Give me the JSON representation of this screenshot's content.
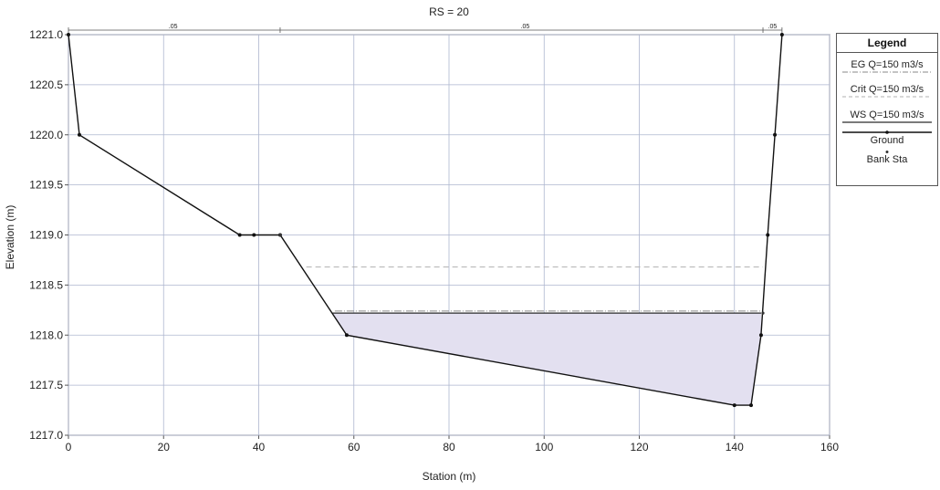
{
  "chart_data": {
    "type": "line",
    "title": "RS = 20",
    "xlabel": "Station (m)",
    "ylabel": "Elevation (m)",
    "xlim": [
      0,
      160
    ],
    "ylim": [
      1217.0,
      1221.0
    ],
    "xticks": [
      "0",
      "20",
      "40",
      "60",
      "80",
      "100",
      "120",
      "140",
      "160"
    ],
    "yticks": [
      "1217.0",
      "1217.5",
      "1218.0",
      "1218.5",
      "1219.0",
      "1219.5",
      "1220.0",
      "1220.5",
      "1221.0"
    ],
    "grid": true,
    "legend_position": "right",
    "legend_title": "Legend",
    "manning_labels": [
      {
        "station": 22,
        "text": ".05"
      },
      {
        "station": 96,
        "text": ".05"
      },
      {
        "station": 148,
        "text": ".05"
      }
    ],
    "manning_breaks": [
      0,
      44.5,
      146,
      150
    ],
    "series": [
      {
        "name": "EG Q=150 m3/s",
        "style": "dash-dot",
        "color": "#8a8a8a",
        "x": [
          56,
          146
        ],
        "y": [
          1218.24,
          1218.24
        ]
      },
      {
        "name": "Crit Q=150 m3/s",
        "style": "dashed",
        "color": "#b0b0b0",
        "x": [
          50,
          146
        ],
        "y": [
          1218.68,
          1218.68
        ]
      },
      {
        "name": "WS Q=150 m3/s",
        "style": "solid",
        "color": "#2a2a2a",
        "fill": "#e3e0f0",
        "x": [
          55.5,
          145.6
        ],
        "y": [
          1218.22,
          1218.22
        ]
      },
      {
        "name": "Ground",
        "style": "solid-markers",
        "color": "#111111",
        "x": [
          0,
          2.3,
          36,
          39,
          44.5,
          58.5,
          140,
          143.5,
          145.6,
          147,
          148.5,
          150
        ],
        "y": [
          1221.0,
          1220.0,
          1219.0,
          1219.0,
          1219.0,
          1218.0,
          1217.3,
          1217.3,
          1218.0,
          1219.0,
          1220.0,
          1221.0
        ]
      },
      {
        "name": "Bank Sta",
        "style": "markers",
        "color": "#333333",
        "x": [
          44.5,
          146
        ],
        "y": [
          1219.0,
          1218.22
        ]
      }
    ]
  }
}
